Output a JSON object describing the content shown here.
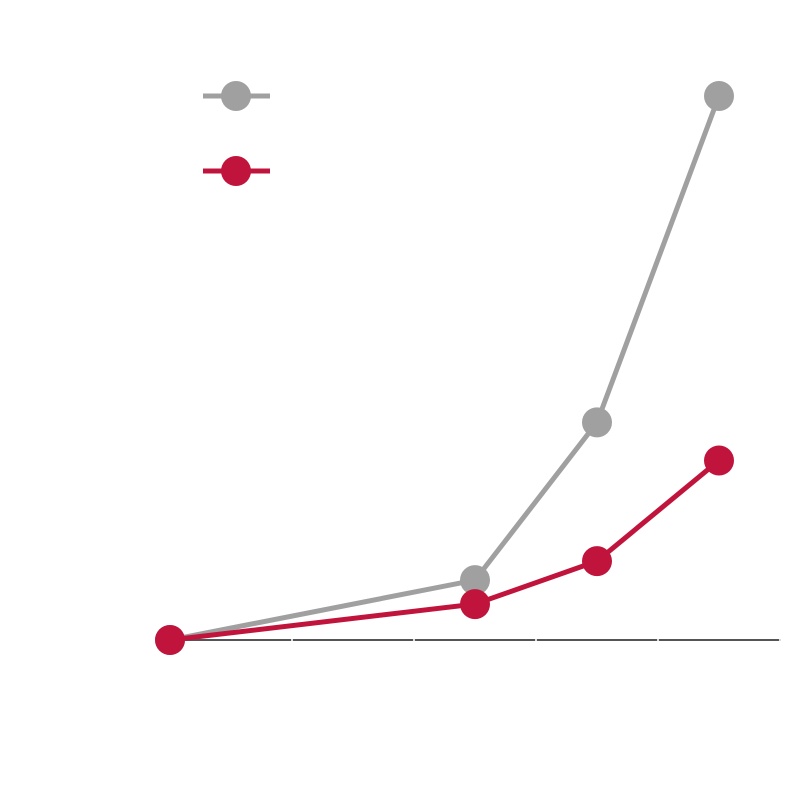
{
  "chart_data": {
    "type": "line",
    "x": [
      0,
      2.5,
      3.5,
      4.5
    ],
    "xlim": [
      0,
      5
    ],
    "xticks": [
      0,
      1,
      2,
      3,
      4,
      5
    ],
    "ylim": [
      0,
      100
    ],
    "legend": "upper left",
    "series": [
      {
        "color": "#a0a0a0",
        "values": [
          0,
          11,
          40,
          100
        ]
      },
      {
        "color": "#c0143c",
        "values": [
          0,
          6.6,
          14.5,
          33
        ]
      }
    ]
  }
}
